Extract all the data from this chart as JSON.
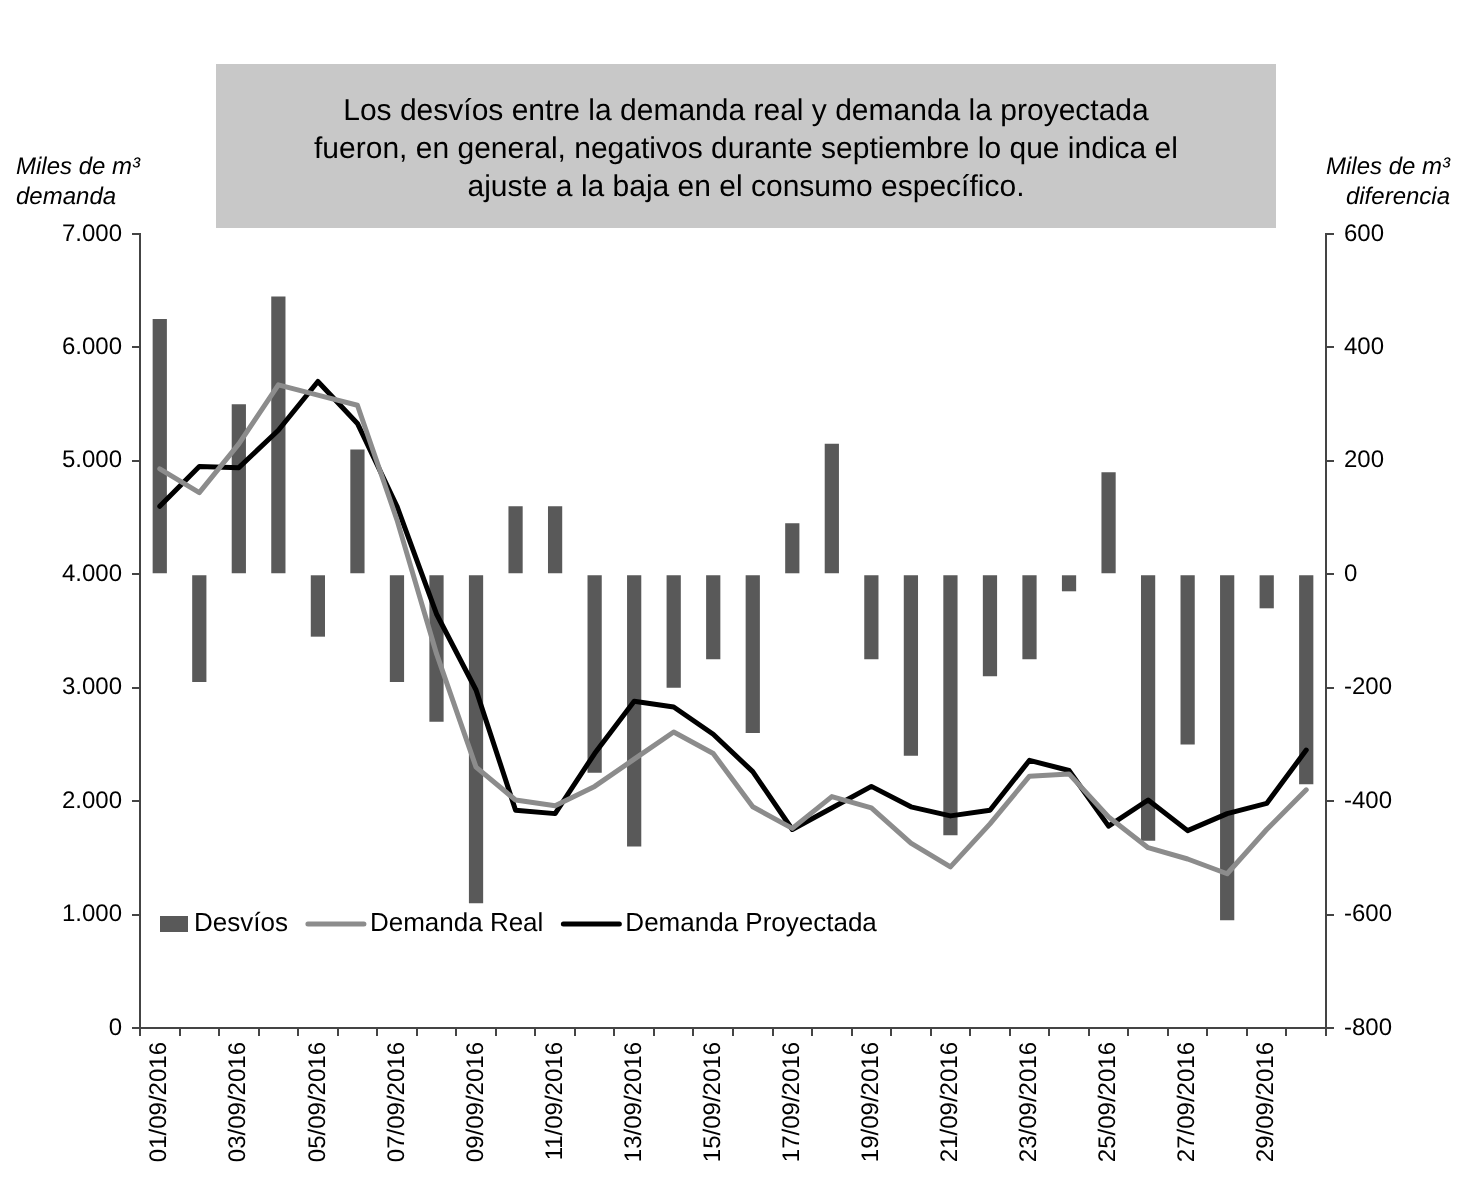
{
  "chart_data": {
    "type": "bar",
    "annotations": [
      "Los desvíos entre la demanda real y demanda la proyectada fueron, en general, negativos durante septiembre lo que indica el ajuste a la baja en el consumo específico."
    ],
    "ylabel": "Miles de m³ demanda",
    "y2label": "Miles de m³ diferencia",
    "categories": [
      "01/09/2016",
      null,
      "03/09/2016",
      null,
      "05/09/2016",
      null,
      "07/09/2016",
      null,
      "09/09/2016",
      null,
      "11/09/2016",
      null,
      "13/09/2016",
      null,
      "15/09/2016",
      null,
      "17/09/2016",
      null,
      "19/09/2016",
      null,
      "21/09/2016",
      null,
      "23/09/2016",
      null,
      "25/09/2016",
      null,
      "27/09/2016",
      null,
      "29/09/2016",
      null
    ],
    "series": [
      {
        "name": "Desvíos",
        "axis": "y2",
        "color": "#595959",
        "values": [
          450,
          -190,
          300,
          490,
          -110,
          220,
          -190,
          -260,
          -580,
          120,
          120,
          -350,
          -480,
          -200,
          -150,
          -280,
          90,
          230,
          -150,
          -320,
          -460,
          -180,
          -150,
          -30,
          180,
          -470,
          -300,
          -610,
          -60,
          -370
        ]
      },
      {
        "name": "Demanda Real",
        "type": "line",
        "color": "#8c8c8c",
        "values": [
          4930,
          4720,
          5150,
          5670,
          5580,
          5490,
          4480,
          3300,
          2300,
          2010,
          1960,
          2130,
          2370,
          2610,
          2420,
          1950,
          1760,
          2040,
          1940,
          1630,
          1420,
          1800,
          2220,
          2240,
          1860,
          1590,
          1490,
          1360,
          1750,
          2100
        ]
      },
      {
        "name": "Demanda Proyectada",
        "type": "line",
        "color": "#000000",
        "values": [
          4600,
          4950,
          4940,
          5270,
          5700,
          5330,
          4600,
          3650,
          2980,
          1920,
          1890,
          2420,
          2880,
          2830,
          2590,
          2260,
          1750,
          1940,
          2130,
          1950,
          1870,
          1920,
          2360,
          2270,
          1780,
          2010,
          1740,
          1890,
          1980,
          2450
        ]
      }
    ],
    "ylim": [
      0,
      7000
    ],
    "yticks": [
      0,
      {
        "value": 1000,
        "label": "1.000"
      },
      {
        "value": 2000,
        "label": "2.000"
      },
      {
        "value": 3000,
        "label": "3.000"
      },
      {
        "value": 4000,
        "label": "4.000"
      },
      {
        "value": 5000,
        "label": "5.000"
      },
      {
        "value": 6000,
        "label": "6.000"
      },
      {
        "value": 7000,
        "label": "7.000"
      }
    ],
    "y2lim": [
      -800,
      600
    ],
    "y2ticks": [
      -800,
      -600,
      -400,
      -200,
      0,
      200,
      400,
      600
    ],
    "legend": "bottom left",
    "marker": "none"
  }
}
